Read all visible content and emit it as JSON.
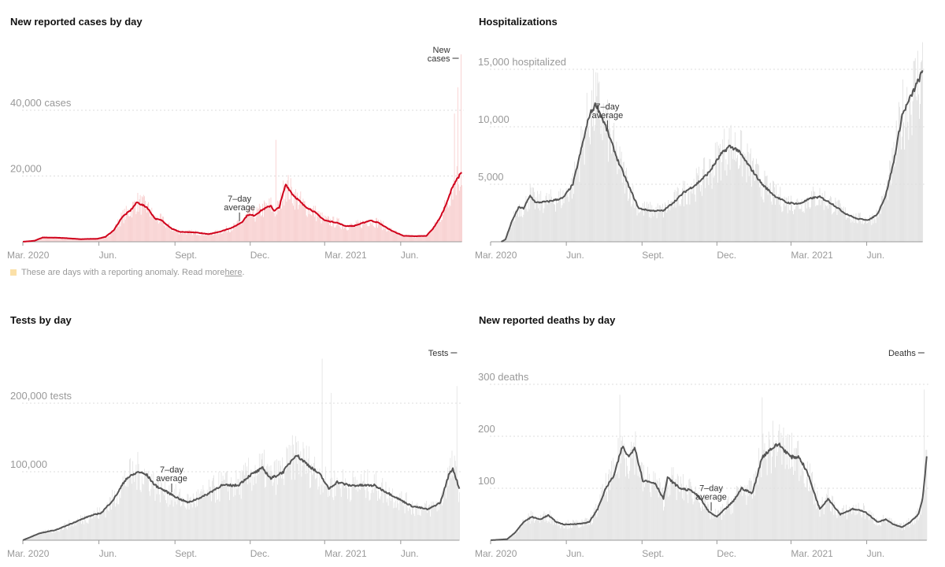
{
  "x_unit": "days since Mar. 1, 2020",
  "note": {
    "text": "These are days with a reporting anomaly. Read more ",
    "link": "here",
    "end": ".",
    "swatch_color": "#fbe0a8"
  },
  "chart_data": [
    {
      "id": "cases",
      "type": "bar+line",
      "title": "New reported cases by day",
      "bar_color": "#f7c9c9",
      "line_color": "#d0021b",
      "yticks": [
        {
          "value": 20000,
          "label": "20,000"
        },
        {
          "value": 40000,
          "label": "40,000 cases"
        }
      ],
      "xticks": [
        {
          "day": 0,
          "label": "Mar. 2020"
        },
        {
          "day": 92,
          "label": "Jun."
        },
        {
          "day": 184,
          "label": "Sept."
        },
        {
          "day": 275,
          "label": "Dec."
        },
        {
          "day": 365,
          "label": "Mar. 2021"
        },
        {
          "day": 457,
          "label": "Jun."
        }
      ],
      "series_label": "New cases",
      "avg_label": "7–day average",
      "avg_label_day": 262,
      "spikes": [
        {
          "day": 306,
          "value": 31000
        },
        {
          "day": 522,
          "value": 39000
        },
        {
          "day": 526,
          "value": 47000
        },
        {
          "day": 530,
          "value": 57000
        }
      ],
      "seven_day_average": [
        [
          0,
          0
        ],
        [
          14,
          300
        ],
        [
          24,
          1300
        ],
        [
          45,
          1200
        ],
        [
          70,
          800
        ],
        [
          90,
          900
        ],
        [
          100,
          1500
        ],
        [
          110,
          3500
        ],
        [
          120,
          7500
        ],
        [
          130,
          9500
        ],
        [
          138,
          12000
        ],
        [
          150,
          10500
        ],
        [
          160,
          7000
        ],
        [
          168,
          6500
        ],
        [
          180,
          4000
        ],
        [
          190,
          3000
        ],
        [
          210,
          2800
        ],
        [
          225,
          2300
        ],
        [
          240,
          3200
        ],
        [
          255,
          4500
        ],
        [
          265,
          6000
        ],
        [
          272,
          8200
        ],
        [
          280,
          8000
        ],
        [
          290,
          9800
        ],
        [
          300,
          11000
        ],
        [
          304,
          9300
        ],
        [
          310,
          10500
        ],
        [
          318,
          17500
        ],
        [
          326,
          14500
        ],
        [
          340,
          11000
        ],
        [
          352,
          9200
        ],
        [
          365,
          6500
        ],
        [
          380,
          5800
        ],
        [
          390,
          4800
        ],
        [
          400,
          4800
        ],
        [
          410,
          5600
        ],
        [
          420,
          6500
        ],
        [
          430,
          5800
        ],
        [
          445,
          3500
        ],
        [
          460,
          1800
        ],
        [
          475,
          1700
        ],
        [
          488,
          1800
        ],
        [
          496,
          4000
        ],
        [
          505,
          7500
        ],
        [
          513,
          12000
        ],
        [
          520,
          17000
        ],
        [
          526,
          19500
        ],
        [
          531,
          21000
        ]
      ]
    },
    {
      "id": "hosp",
      "type": "bar+line",
      "title": "Hospitalizations",
      "bar_color": "#dedede",
      "line_color": "#555555",
      "yticks": [
        {
          "value": 5000,
          "label": "5,000"
        },
        {
          "value": 10000,
          "label": "10,000"
        },
        {
          "value": 15000,
          "label": "15,000 hospitalized"
        }
      ],
      "xticks": [
        {
          "day": 0,
          "label": "Mar. 2020"
        },
        {
          "day": 92,
          "label": "Jun."
        },
        {
          "day": 184,
          "label": "Sept."
        },
        {
          "day": 275,
          "label": "Dec."
        },
        {
          "day": 365,
          "label": "Mar. 2021"
        },
        {
          "day": 457,
          "label": "Jun."
        }
      ],
      "series_label": "",
      "avg_label": "7–day average",
      "avg_label_day": 142,
      "spikes": [],
      "seven_day_average": [
        [
          13,
          0
        ],
        [
          18,
          200
        ],
        [
          26,
          1800
        ],
        [
          34,
          3000
        ],
        [
          40,
          2900
        ],
        [
          48,
          4000
        ],
        [
          55,
          3400
        ],
        [
          70,
          3500
        ],
        [
          88,
          3800
        ],
        [
          100,
          5000
        ],
        [
          110,
          8000
        ],
        [
          120,
          11000
        ],
        [
          128,
          12000
        ],
        [
          140,
          10000
        ],
        [
          155,
          7000
        ],
        [
          170,
          4500
        ],
        [
          180,
          2900
        ],
        [
          195,
          2700
        ],
        [
          210,
          2700
        ],
        [
          225,
          3600
        ],
        [
          235,
          4300
        ],
        [
          250,
          5000
        ],
        [
          265,
          6000
        ],
        [
          280,
          7600
        ],
        [
          290,
          8300
        ],
        [
          300,
          8000
        ],
        [
          315,
          6500
        ],
        [
          330,
          5000
        ],
        [
          345,
          4000
        ],
        [
          360,
          3400
        ],
        [
          375,
          3300
        ],
        [
          390,
          3800
        ],
        [
          400,
          3900
        ],
        [
          415,
          3300
        ],
        [
          430,
          2500
        ],
        [
          445,
          2000
        ],
        [
          460,
          1900
        ],
        [
          470,
          2400
        ],
        [
          480,
          4000
        ],
        [
          490,
          7000
        ],
        [
          500,
          11000
        ],
        [
          525,
          14800
        ]
      ]
    },
    {
      "id": "tests",
      "type": "bar+line",
      "title": "Tests by day",
      "bar_color": "#e2e2e2",
      "line_color": "#555555",
      "yticks": [
        {
          "value": 100000,
          "label": "100,000"
        },
        {
          "value": 200000,
          "label": "200,000 tests"
        }
      ],
      "xticks": [
        {
          "day": 0,
          "label": "Mar. 2020"
        },
        {
          "day": 92,
          "label": "Jun."
        },
        {
          "day": 184,
          "label": "Sept."
        },
        {
          "day": 275,
          "label": "Dec."
        },
        {
          "day": 365,
          "label": "Mar. 2021"
        },
        {
          "day": 457,
          "label": "Jun."
        }
      ],
      "series_label": "Tests",
      "avg_label": "7–day average",
      "avg_label_day": 180,
      "spikes": [
        {
          "day": 362,
          "value": 265000
        },
        {
          "day": 373,
          "value": 215000
        },
        {
          "day": 525,
          "value": 225000
        }
      ],
      "seven_day_average": [
        [
          0,
          0
        ],
        [
          20,
          10000
        ],
        [
          40,
          15000
        ],
        [
          60,
          25000
        ],
        [
          80,
          35000
        ],
        [
          95,
          40000
        ],
        [
          110,
          60000
        ],
        [
          125,
          90000
        ],
        [
          140,
          100000
        ],
        [
          150,
          95000
        ],
        [
          160,
          80000
        ],
        [
          175,
          70000
        ],
        [
          190,
          60000
        ],
        [
          200,
          55000
        ],
        [
          220,
          65000
        ],
        [
          240,
          80000
        ],
        [
          260,
          80000
        ],
        [
          275,
          95000
        ],
        [
          290,
          105000
        ],
        [
          300,
          90000
        ],
        [
          315,
          100000
        ],
        [
          330,
          125000
        ],
        [
          345,
          110000
        ],
        [
          360,
          95000
        ],
        [
          370,
          75000
        ],
        [
          380,
          85000
        ],
        [
          395,
          80000
        ],
        [
          410,
          80000
        ],
        [
          425,
          80000
        ],
        [
          440,
          70000
        ],
        [
          455,
          60000
        ],
        [
          470,
          50000
        ],
        [
          490,
          45000
        ],
        [
          505,
          55000
        ],
        [
          515,
          95000
        ],
        [
          520,
          105000
        ],
        [
          528,
          75000
        ]
      ]
    },
    {
      "id": "deaths",
      "type": "bar+line",
      "title": "New reported deaths by day",
      "bar_color": "#e0e0e0",
      "line_color": "#555555",
      "yticks": [
        {
          "value": 100,
          "label": "100"
        },
        {
          "value": 200,
          "label": "200"
        },
        {
          "value": 300,
          "label": "300 deaths"
        }
      ],
      "xticks": [
        {
          "day": 0,
          "label": "Mar. 2020"
        },
        {
          "day": 92,
          "label": "Jun."
        },
        {
          "day": 184,
          "label": "Sept."
        },
        {
          "day": 275,
          "label": "Dec."
        },
        {
          "day": 365,
          "label": "Mar. 2021"
        },
        {
          "day": 457,
          "label": "Jun."
        }
      ],
      "series_label": "Deaths",
      "avg_label": "7–day average",
      "avg_label_day": 268,
      "spikes": [
        {
          "day": 157,
          "value": 280
        },
        {
          "day": 330,
          "value": 275
        },
        {
          "day": 527,
          "value": 290
        }
      ],
      "seven_day_average": [
        [
          0,
          0
        ],
        [
          20,
          2
        ],
        [
          30,
          15
        ],
        [
          40,
          35
        ],
        [
          50,
          45
        ],
        [
          60,
          40
        ],
        [
          70,
          48
        ],
        [
          80,
          35
        ],
        [
          90,
          30
        ],
        [
          110,
          32
        ],
        [
          120,
          35
        ],
        [
          130,
          60
        ],
        [
          140,
          100
        ],
        [
          150,
          125
        ],
        [
          160,
          180
        ],
        [
          168,
          160
        ],
        [
          175,
          180
        ],
        [
          185,
          115
        ],
        [
          200,
          110
        ],
        [
          210,
          80
        ],
        [
          215,
          120
        ],
        [
          230,
          100
        ],
        [
          245,
          95
        ],
        [
          255,
          80
        ],
        [
          265,
          55
        ],
        [
          275,
          45
        ],
        [
          285,
          60
        ],
        [
          295,
          75
        ],
        [
          305,
          100
        ],
        [
          318,
          90
        ],
        [
          330,
          160
        ],
        [
          340,
          175
        ],
        [
          350,
          185
        ],
        [
          365,
          160
        ],
        [
          375,
          160
        ],
        [
          385,
          130
        ],
        [
          400,
          60
        ],
        [
          410,
          80
        ],
        [
          425,
          50
        ],
        [
          440,
          60
        ],
        [
          455,
          55
        ],
        [
          470,
          35
        ],
        [
          480,
          40
        ],
        [
          490,
          30
        ],
        [
          500,
          25
        ],
        [
          510,
          35
        ],
        [
          520,
          50
        ],
        [
          525,
          80
        ],
        [
          530,
          160
        ]
      ]
    }
  ]
}
